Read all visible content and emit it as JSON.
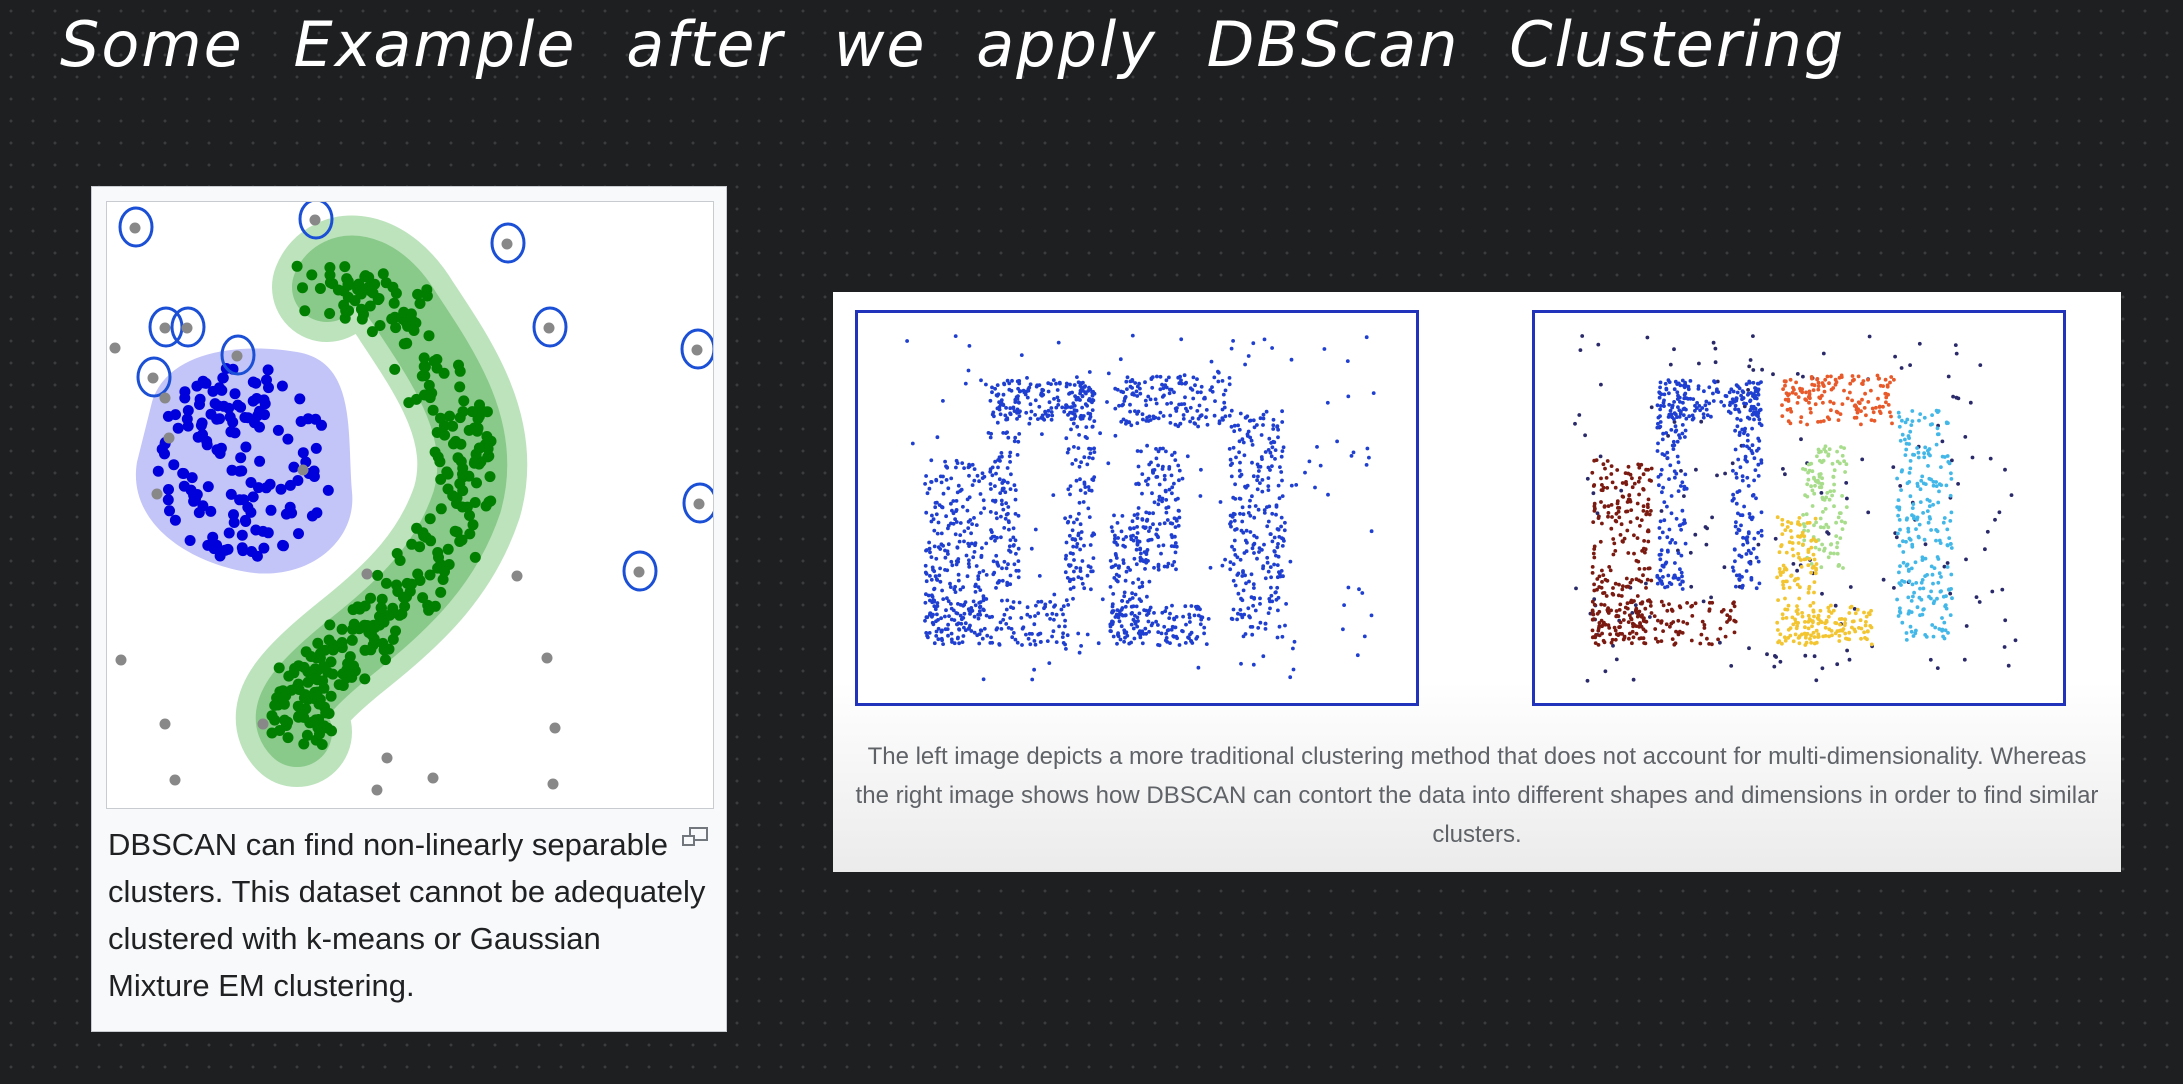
{
  "heading": "Some Example after we apply DBScan Clustering",
  "figure_left": {
    "caption": "DBSCAN can find non-linearly separable clusters. This dataset cannot be adequately clustered with k-means or Gaussian Mixture EM clustering.",
    "enlarge_icon": "enlarge-icon",
    "colors": {
      "cluster_blue": "#0000dd",
      "cluster_green": "#007f00",
      "noise": "#888888",
      "annotation": "#1a4fd6"
    }
  },
  "figure_right": {
    "caption": "The left image depicts a more traditional clustering method that does not account for multi-dimensionality. Whereas the right image shows how DBSCAN can contort the data into different shapes and dimensions in order to find similar clusters.",
    "colors": {
      "blue": "#1f3fd1",
      "maroon": "#7a1a10",
      "orange": "#e85a2a",
      "yellow": "#f2c531",
      "light_green": "#a8dd8c",
      "cyan": "#43b8e8",
      "frame": "#2233bb"
    }
  }
}
